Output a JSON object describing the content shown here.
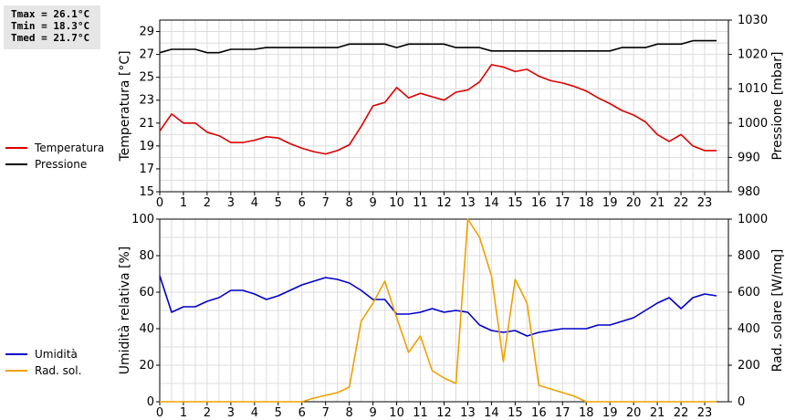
{
  "stats": {
    "tmax": "Tmax = 26.1°C",
    "tmin": "Tmin = 18.3°C",
    "tmed": "Tmed = 21.7°C"
  },
  "chart_data": [
    {
      "type": "line",
      "x_ticks": [
        "0",
        "1",
        "2",
        "3",
        "4",
        "5",
        "6",
        "7",
        "8",
        "9",
        "10",
        "11",
        "12",
        "13",
        "14",
        "15",
        "16",
        "17",
        "18",
        "19",
        "20",
        "21",
        "22",
        "23"
      ],
      "xlim": [
        0,
        24
      ],
      "ylabel": "Temperatura [°C]",
      "y2label": "Pressione [mbar]",
      "ylim": [
        15,
        30
      ],
      "yticks": [
        15,
        17,
        19,
        21,
        23,
        25,
        27,
        29
      ],
      "y2lim": [
        980,
        1030
      ],
      "y2ticks": [
        980,
        990,
        1000,
        1010,
        1020,
        1030
      ],
      "grid": true,
      "legend": "left",
      "series": [
        {
          "name": "Temperatura",
          "axis": "left",
          "color": "#dd0000",
          "x": [
            0,
            0.5,
            1,
            1.5,
            2,
            2.5,
            3,
            3.5,
            4,
            4.5,
            5,
            5.5,
            6,
            6.5,
            7,
            7.5,
            8,
            8.5,
            9,
            9.5,
            10,
            10.5,
            11,
            11.5,
            12,
            12.5,
            13,
            13.5,
            14,
            14.5,
            15,
            15.5,
            16,
            16.5,
            17,
            17.5,
            18,
            18.5,
            19,
            19.5,
            20,
            20.5,
            21,
            21.5,
            22,
            22.5,
            23,
            23.5
          ],
          "y": [
            20.3,
            21.8,
            21.0,
            21.0,
            20.2,
            19.9,
            19.3,
            19.3,
            19.5,
            19.8,
            19.7,
            19.2,
            18.8,
            18.5,
            18.3,
            18.6,
            19.1,
            20.7,
            22.5,
            22.8,
            24.1,
            23.2,
            23.6,
            23.3,
            23.0,
            23.7,
            23.9,
            24.6,
            26.1,
            25.9,
            25.5,
            25.7,
            25.1,
            24.7,
            24.5,
            24.2,
            23.8,
            23.2,
            22.7,
            22.1,
            21.7,
            21.1,
            20.0,
            19.4,
            20.0,
            19.0,
            18.6,
            18.6
          ]
        },
        {
          "name": "Pressione",
          "axis": "right",
          "color": "#000000",
          "x": [
            0,
            0.5,
            1,
            1.5,
            2,
            2.5,
            3,
            3.5,
            4,
            4.5,
            5,
            5.5,
            6,
            6.5,
            7,
            7.5,
            8,
            8.5,
            9,
            9.5,
            10,
            10.5,
            11,
            11.5,
            12,
            12.5,
            13,
            13.5,
            14,
            14.5,
            15,
            15.5,
            16,
            16.5,
            17,
            17.5,
            18,
            18.5,
            19,
            19.5,
            20,
            20.5,
            21,
            21.5,
            22,
            22.5,
            23,
            23.5
          ],
          "y": [
            1020.5,
            1021.5,
            1021.5,
            1021.5,
            1020.5,
            1020.5,
            1021.5,
            1021.5,
            1021.5,
            1022,
            1022,
            1022,
            1022,
            1022,
            1022,
            1022,
            1023,
            1023,
            1023,
            1023,
            1022,
            1023,
            1023,
            1023,
            1023,
            1022,
            1022,
            1022,
            1021,
            1021,
            1021,
            1021,
            1021,
            1021,
            1021,
            1021,
            1021,
            1021,
            1021,
            1022,
            1022,
            1022,
            1023,
            1023,
            1023,
            1024,
            1024,
            1024
          ]
        }
      ]
    },
    {
      "type": "line",
      "x_ticks": [
        "0",
        "1",
        "2",
        "3",
        "4",
        "5",
        "6",
        "7",
        "8",
        "9",
        "10",
        "11",
        "12",
        "13",
        "14",
        "15",
        "16",
        "17",
        "18",
        "19",
        "20",
        "21",
        "22",
        "23"
      ],
      "xlim": [
        0,
        24
      ],
      "ylabel": "Umidità relativa [%]",
      "y2label": "Rad. solare [W/mq]",
      "ylim": [
        0,
        100
      ],
      "yticks": [
        0,
        20,
        40,
        60,
        80,
        100
      ],
      "y2lim": [
        0,
        1000
      ],
      "y2ticks": [
        0,
        200,
        400,
        600,
        800,
        1000
      ],
      "grid": true,
      "legend": "left",
      "series": [
        {
          "name": "Umidità",
          "axis": "left",
          "color": "#0000cc",
          "x": [
            0,
            0.5,
            1,
            1.5,
            2,
            2.5,
            3,
            3.5,
            4,
            4.5,
            5,
            5.5,
            6,
            6.5,
            7,
            7.5,
            8,
            8.5,
            9,
            9.5,
            10,
            10.5,
            11,
            11.5,
            12,
            12.5,
            13,
            13.5,
            14,
            14.5,
            15,
            15.5,
            16,
            16.5,
            17,
            17.5,
            18,
            18.5,
            19,
            19.5,
            20,
            20.5,
            21,
            21.5,
            22,
            22.5,
            23,
            23.5
          ],
          "y": [
            69,
            49,
            52,
            52,
            55,
            57,
            61,
            61,
            59,
            56,
            58,
            61,
            64,
            66,
            68,
            67,
            65,
            61,
            56,
            56,
            48,
            48,
            49,
            51,
            49,
            50,
            49,
            42,
            39,
            38,
            39,
            36,
            38,
            39,
            40,
            40,
            40,
            42,
            42,
            44,
            46,
            50,
            54,
            57,
            51,
            57,
            59,
            58
          ]
        },
        {
          "name": "Rad. sol.",
          "axis": "right",
          "color": "#f0a000",
          "x": [
            0,
            0.5,
            1,
            1.5,
            2,
            2.5,
            3,
            3.5,
            4,
            4.5,
            5,
            5.5,
            6,
            6.5,
            7,
            7.5,
            8,
            8.5,
            9,
            9.5,
            10,
            10.5,
            11,
            11.5,
            12,
            12.5,
            13,
            13.5,
            14,
            14.5,
            15,
            15.5,
            16,
            16.5,
            17,
            17.5,
            18,
            18.5,
            19,
            19.5,
            20,
            20.5,
            21,
            21.5,
            22,
            22.5,
            23,
            23.5
          ],
          "y": [
            0,
            0,
            0,
            0,
            0,
            0,
            0,
            0,
            0,
            0,
            0,
            0,
            0,
            20,
            35,
            50,
            80,
            440,
            540,
            660,
            460,
            270,
            360,
            170,
            130,
            100,
            1000,
            900,
            690,
            220,
            670,
            540,
            90,
            70,
            50,
            30,
            0,
            0,
            0,
            0,
            0,
            0,
            0,
            0,
            0,
            0,
            0,
            0
          ]
        }
      ]
    }
  ]
}
